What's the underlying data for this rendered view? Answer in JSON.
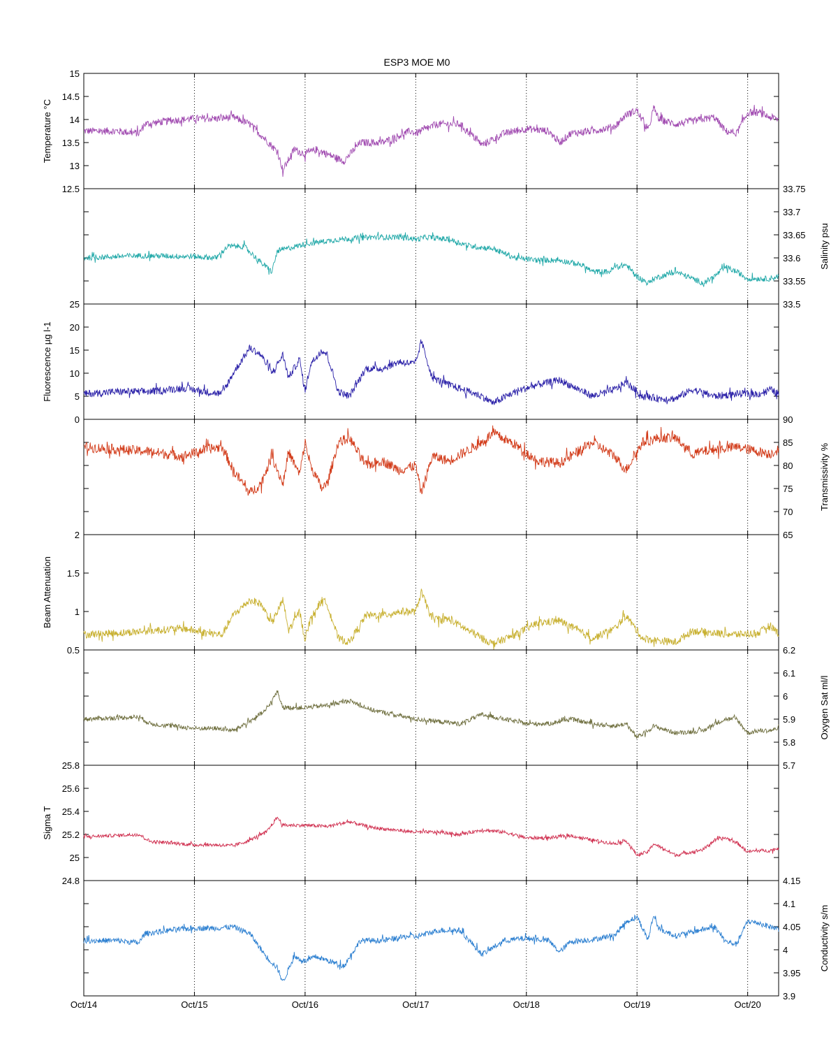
{
  "title": "ESP3 MOE   M0",
  "x_ticks": [
    "Oct/14",
    "Oct/15",
    "Oct/16",
    "Oct/17",
    "Oct/18",
    "Oct/19",
    "Oct/20"
  ],
  "chart_data": [
    {
      "type": "line",
      "axis_side": "left",
      "ylabel": "Temperature °C",
      "ylim": [
        12.5,
        15
      ],
      "yticks": [
        12.5,
        13,
        13.5,
        14,
        14.5,
        15
      ],
      "ytick_labels": [
        "12.5",
        "13",
        "13.5",
        "14",
        "14.5",
        "15"
      ],
      "color": "#a04ab0",
      "noise": 0.08,
      "x": [
        0.0,
        0.3,
        0.5,
        0.55,
        0.8,
        1.0,
        1.2,
        1.35,
        1.5,
        1.65,
        1.75,
        1.8,
        1.9,
        2.0,
        2.1,
        2.35,
        2.5,
        2.7,
        2.95,
        3.0,
        3.1,
        3.2,
        3.4,
        3.6,
        3.8,
        4.0,
        4.2,
        4.3,
        4.4,
        4.6,
        4.8,
        4.9,
        5.0,
        5.1,
        5.15,
        5.2,
        5.35,
        5.7,
        5.8,
        5.9,
        6.0,
        6.1,
        6.2,
        6.28
      ],
      "values": [
        13.75,
        13.75,
        13.7,
        13.9,
        13.98,
        14.02,
        14.02,
        14.05,
        13.9,
        13.55,
        13.3,
        12.9,
        13.35,
        13.25,
        13.35,
        13.1,
        13.5,
        13.5,
        13.75,
        13.7,
        13.8,
        13.9,
        13.9,
        13.45,
        13.7,
        13.8,
        13.75,
        13.5,
        13.7,
        13.75,
        13.85,
        14.1,
        14.2,
        13.75,
        14.25,
        14.0,
        13.9,
        14.05,
        13.75,
        13.7,
        14.15,
        14.15,
        14.05,
        14.0
      ]
    },
    {
      "type": "line",
      "axis_side": "right",
      "ylabel": "Salinity psu",
      "ylim": [
        33.5,
        33.75
      ],
      "yticks": [
        33.5,
        33.55,
        33.6,
        33.65,
        33.7,
        33.75
      ],
      "ytick_labels": [
        "33.5",
        "33.55",
        "33.6",
        "33.65",
        "33.7",
        "33.75"
      ],
      "color": "#20a8a8",
      "noise": 0.006,
      "x": [
        0.0,
        0.5,
        1.0,
        1.2,
        1.3,
        1.45,
        1.6,
        1.7,
        1.75,
        2.0,
        2.3,
        2.6,
        2.9,
        3.0,
        3.1,
        3.3,
        3.5,
        3.7,
        3.9,
        4.1,
        4.3,
        4.5,
        4.6,
        4.75,
        4.8,
        4.9,
        5.0,
        5.1,
        5.15,
        5.35,
        5.6,
        5.7,
        5.8,
        5.9,
        6.0,
        6.1,
        6.2,
        6.28
      ],
      "values": [
        33.6,
        33.605,
        33.603,
        33.6,
        33.625,
        33.625,
        33.59,
        33.57,
        33.615,
        33.63,
        33.64,
        33.645,
        33.645,
        33.64,
        33.645,
        33.64,
        33.625,
        33.62,
        33.6,
        33.595,
        33.595,
        33.585,
        33.57,
        33.57,
        33.58,
        33.585,
        33.56,
        33.545,
        33.555,
        33.57,
        33.545,
        33.56,
        33.58,
        33.57,
        33.555,
        33.555,
        33.555,
        33.56
      ]
    },
    {
      "type": "line",
      "axis_side": "left",
      "ylabel": "Fluorescence µg l-1",
      "ylim": [
        0,
        25
      ],
      "yticks": [
        0,
        5,
        10,
        15,
        20,
        25
      ],
      "ytick_labels": [
        "0",
        "5",
        "10",
        "15",
        "20",
        "25"
      ],
      "color": "#2a20a8",
      "noise": 0.8,
      "x": [
        0.0,
        0.3,
        0.6,
        0.9,
        1.1,
        1.25,
        1.35,
        1.5,
        1.6,
        1.7,
        1.8,
        1.85,
        1.95,
        2.0,
        2.05,
        2.15,
        2.2,
        2.3,
        2.4,
        2.55,
        2.7,
        2.85,
        3.0,
        3.05,
        3.15,
        3.3,
        3.6,
        3.7,
        3.9,
        4.1,
        4.3,
        4.6,
        4.8,
        4.9,
        5.05,
        5.2,
        5.35,
        5.5,
        5.7,
        5.9,
        6.1,
        6.2,
        6.28
      ],
      "values": [
        5.5,
        6.0,
        6.0,
        6.8,
        6.0,
        5.5,
        10.0,
        15.5,
        14.0,
        10.0,
        14.0,
        9.0,
        13.0,
        6.0,
        12.0,
        15.0,
        14.0,
        6.0,
        5.0,
        11.0,
        11.0,
        12.5,
        12.0,
        17.0,
        9.0,
        7.5,
        5.0,
        3.5,
        6.0,
        7.5,
        8.5,
        5.0,
        6.5,
        8.0,
        5.0,
        4.5,
        4.5,
        6.5,
        5.0,
        5.5,
        5.5,
        6.5,
        5.5
      ]
    },
    {
      "type": "line",
      "axis_side": "right",
      "ylabel": "Transmissivity %",
      "ylim": [
        65,
        90
      ],
      "yticks": [
        65,
        70,
        75,
        80,
        85,
        90
      ],
      "ytick_labels": [
        "65",
        "70",
        "75",
        "80",
        "85",
        "90"
      ],
      "color": "#d23a18",
      "noise": 1.1,
      "x": [
        0.0,
        0.3,
        0.6,
        0.9,
        1.1,
        1.25,
        1.35,
        1.5,
        1.6,
        1.7,
        1.8,
        1.85,
        1.95,
        2.0,
        2.05,
        2.15,
        2.2,
        2.3,
        2.4,
        2.55,
        2.7,
        2.85,
        3.0,
        3.05,
        3.15,
        3.3,
        3.6,
        3.7,
        3.9,
        4.1,
        4.3,
        4.6,
        4.8,
        4.9,
        5.05,
        5.2,
        5.35,
        5.5,
        5.7,
        5.9,
        6.1,
        6.2,
        6.28
      ],
      "values": [
        84.0,
        83.5,
        83.0,
        82.0,
        83.5,
        84.0,
        79.0,
        74.0,
        76.0,
        82.0,
        76.0,
        83.0,
        78.0,
        85.0,
        80.0,
        75.0,
        76.0,
        85.0,
        86.0,
        80.0,
        81.0,
        79.0,
        80.0,
        74.0,
        82.0,
        81.0,
        85.0,
        87.0,
        84.5,
        81.0,
        80.5,
        85.0,
        82.0,
        79.0,
        85.0,
        86.0,
        86.0,
        82.5,
        83.5,
        84.0,
        83.0,
        82.5,
        83.5
      ]
    },
    {
      "type": "line",
      "axis_side": "left",
      "ylabel": "Beam Attenuation",
      "ylim": [
        0.5,
        2
      ],
      "yticks": [
        0.5,
        1,
        1.5,
        2
      ],
      "ytick_labels": [
        "0.5",
        "1",
        "1.5",
        "2"
      ],
      "color": "#c8b030",
      "noise": 0.05,
      "x": [
        0.0,
        0.3,
        0.6,
        0.9,
        1.1,
        1.25,
        1.35,
        1.5,
        1.6,
        1.7,
        1.8,
        1.85,
        1.95,
        2.0,
        2.05,
        2.15,
        2.2,
        2.3,
        2.4,
        2.55,
        2.7,
        2.85,
        3.0,
        3.05,
        3.15,
        3.3,
        3.6,
        3.7,
        3.9,
        4.1,
        4.3,
        4.6,
        4.8,
        4.9,
        5.05,
        5.2,
        5.35,
        5.5,
        5.7,
        5.9,
        6.1,
        6.2,
        6.28
      ],
      "values": [
        0.7,
        0.72,
        0.75,
        0.78,
        0.72,
        0.7,
        0.95,
        1.15,
        1.1,
        0.85,
        1.15,
        0.75,
        1.0,
        0.65,
        0.9,
        1.15,
        1.1,
        0.65,
        0.6,
        0.95,
        0.95,
        1.0,
        1.0,
        1.25,
        0.9,
        0.9,
        0.65,
        0.58,
        0.7,
        0.85,
        0.88,
        0.65,
        0.78,
        0.95,
        0.65,
        0.62,
        0.6,
        0.75,
        0.72,
        0.7,
        0.72,
        0.82,
        0.72
      ]
    },
    {
      "type": "line",
      "axis_side": "right",
      "ylabel": "Oxygen Sat ml/l",
      "ylim": [
        5.7,
        6.2
      ],
      "yticks": [
        5.7,
        5.8,
        5.9,
        6.0,
        6.1,
        6.2
      ],
      "ytick_labels": [
        "5.7",
        "5.8",
        "5.9",
        "6",
        "6.1",
        "6.2"
      ],
      "color": "#707040",
      "noise": 0.01,
      "x": [
        0.0,
        0.5,
        0.6,
        1.0,
        1.2,
        1.35,
        1.5,
        1.65,
        1.75,
        1.8,
        2.0,
        2.2,
        2.4,
        2.6,
        2.8,
        3.0,
        3.2,
        3.4,
        3.6,
        3.8,
        4.0,
        4.2,
        4.4,
        4.6,
        4.8,
        4.9,
        5.0,
        5.1,
        5.15,
        5.35,
        5.6,
        5.7,
        5.8,
        5.9,
        6.0,
        6.1,
        6.2,
        6.28
      ],
      "values": [
        5.9,
        5.91,
        5.88,
        5.86,
        5.86,
        5.85,
        5.89,
        5.94,
        6.02,
        5.95,
        5.95,
        5.96,
        5.98,
        5.94,
        5.92,
        5.9,
        5.89,
        5.88,
        5.92,
        5.9,
        5.88,
        5.88,
        5.9,
        5.88,
        5.87,
        5.88,
        5.82,
        5.85,
        5.87,
        5.84,
        5.85,
        5.88,
        5.9,
        5.9,
        5.84,
        5.85,
        5.85,
        5.86
      ]
    },
    {
      "type": "line",
      "axis_side": "left",
      "ylabel": "Sigma T",
      "ylim": [
        24.8,
        25.8
      ],
      "yticks": [
        24.8,
        25.0,
        25.2,
        25.4,
        25.6,
        25.8
      ],
      "ytick_labels": [
        "24.8",
        "25",
        "25.2",
        "25.4",
        "25.6",
        "25.8"
      ],
      "color": "#d03050",
      "noise": 0.015,
      "x": [
        0.0,
        0.5,
        0.6,
        1.0,
        1.2,
        1.35,
        1.5,
        1.65,
        1.75,
        1.8,
        2.0,
        2.2,
        2.4,
        2.6,
        2.8,
        3.0,
        3.2,
        3.4,
        3.6,
        3.8,
        4.0,
        4.2,
        4.4,
        4.6,
        4.8,
        4.9,
        5.0,
        5.1,
        5.15,
        5.35,
        5.6,
        5.7,
        5.8,
        5.9,
        6.0,
        6.1,
        6.2,
        6.28
      ],
      "values": [
        25.18,
        25.2,
        25.14,
        25.11,
        25.11,
        25.1,
        25.15,
        25.22,
        25.35,
        25.28,
        25.28,
        25.27,
        25.31,
        25.26,
        25.24,
        25.22,
        25.22,
        25.2,
        25.24,
        25.22,
        25.17,
        25.17,
        25.19,
        25.15,
        25.12,
        25.15,
        25.02,
        25.05,
        25.12,
        25.02,
        25.07,
        25.15,
        25.17,
        25.13,
        25.05,
        25.06,
        25.06,
        25.08
      ]
    },
    {
      "type": "line",
      "axis_side": "right",
      "ylabel": "Conductivity s/m",
      "ylim": [
        3.9,
        4.15
      ],
      "yticks": [
        3.9,
        3.95,
        4.0,
        4.05,
        4.1,
        4.15
      ],
      "ytick_labels": [
        "3.9",
        "3.95",
        "4",
        "4.05",
        "4.1",
        "4.15"
      ],
      "color": "#2a7ed0",
      "noise": 0.006,
      "x": [
        0.0,
        0.3,
        0.5,
        0.55,
        0.8,
        1.0,
        1.2,
        1.35,
        1.5,
        1.65,
        1.75,
        1.8,
        1.9,
        2.0,
        2.1,
        2.35,
        2.5,
        2.7,
        2.95,
        3.0,
        3.1,
        3.2,
        3.4,
        3.6,
        3.8,
        4.0,
        4.2,
        4.3,
        4.4,
        4.6,
        4.8,
        4.9,
        5.0,
        5.1,
        5.15,
        5.2,
        5.35,
        5.7,
        5.8,
        5.9,
        6.0,
        6.1,
        6.2,
        6.28
      ],
      "values": [
        4.02,
        4.02,
        4.015,
        4.035,
        4.043,
        4.047,
        4.047,
        4.05,
        4.035,
        3.985,
        3.96,
        3.93,
        3.985,
        3.975,
        3.985,
        3.965,
        4.02,
        4.02,
        4.03,
        4.028,
        4.035,
        4.042,
        4.042,
        3.99,
        4.02,
        4.025,
        4.02,
        3.995,
        4.018,
        4.022,
        4.032,
        4.06,
        4.072,
        4.022,
        4.075,
        4.045,
        4.03,
        4.05,
        4.018,
        4.012,
        4.062,
        4.058,
        4.05,
        4.045
      ]
    }
  ]
}
